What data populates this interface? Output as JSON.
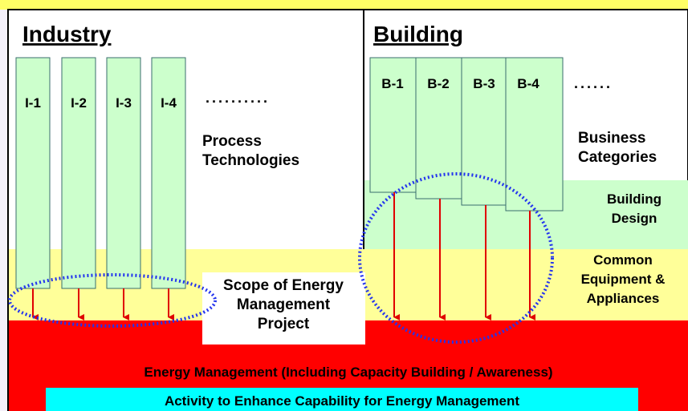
{
  "sections": {
    "industry": "Industry",
    "building": "Building"
  },
  "industry_items": [
    "I-1",
    "I-2",
    "I-3",
    "I-4"
  ],
  "industry_dots": "..........",
  "process_technologies": "Process Technologies",
  "building_items": [
    "B-1",
    "B-2",
    "B-3",
    "B-4"
  ],
  "building_dots": "......",
  "business_categories": "Business Categories",
  "layers": {
    "building_design": "Building Design",
    "common_equipment": "Common Equipment & Appliances",
    "energy_management": "Energy Management (Including Capacity Building / Awareness)",
    "activity": "Activity to Enhance Capability for Energy Management"
  },
  "scope": "Scope of Energy Management Project"
}
